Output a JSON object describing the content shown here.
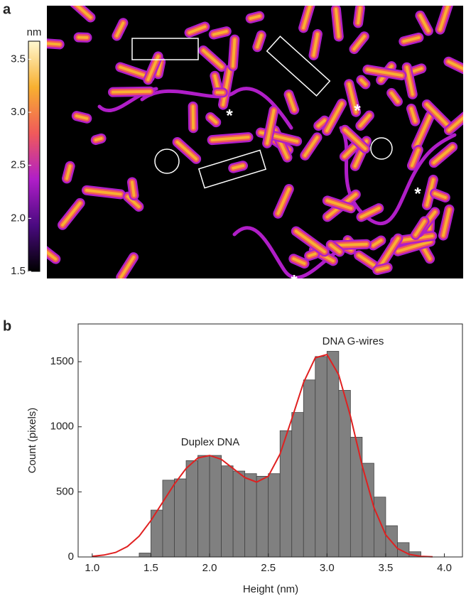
{
  "chart_data": [
    {
      "type": "image",
      "label": "a",
      "colorbar": {
        "label": "nm",
        "lim": [
          1.5,
          3.67
        ],
        "ticks": [
          1.5,
          {
            "value": 2,
            "label": "2.0"
          },
          2.5,
          {
            "value": 3,
            "label": "3.0"
          },
          3.5
        ],
        "colors": [
          "#000000",
          "#4a0a80",
          "#b01ec8",
          "#f05a5a",
          "#f8b030",
          "#fff8d0"
        ]
      },
      "annotations": [
        "*",
        "*",
        "*",
        "*"
      ]
    },
    {
      "type": "histogram",
      "label": "b",
      "xlabel": "Height (nm)",
      "ylabel": "Count (pixels)",
      "bins": [
        1.4,
        1.5,
        1.6,
        1.7,
        1.8,
        1.9,
        2.0,
        2.1,
        2.2,
        2.3,
        2.4,
        2.5,
        2.6,
        2.7,
        2.8,
        2.9,
        3.0,
        3.1,
        3.2,
        3.3,
        3.4,
        3.5,
        3.6,
        3.7,
        3.8
      ],
      "values": [
        30,
        360,
        590,
        600,
        740,
        780,
        780,
        700,
        660,
        640,
        620,
        640,
        970,
        1110,
        1360,
        1540,
        1580,
        1280,
        920,
        720,
        460,
        240,
        110,
        40
      ],
      "color": "#808080",
      "fit": {
        "color": "#e02020",
        "x": [
          1.0,
          1.1,
          1.2,
          1.3,
          1.4,
          1.5,
          1.6,
          1.7,
          1.8,
          1.9,
          2.0,
          2.1,
          2.2,
          2.3,
          2.4,
          2.5,
          2.6,
          2.7,
          2.8,
          2.9,
          3.0,
          3.1,
          3.2,
          3.3,
          3.4,
          3.5,
          3.6,
          3.7,
          3.8,
          3.9
        ],
        "values": [
          5,
          15,
          35,
          80,
          160,
          280,
          420,
          560,
          680,
          760,
          780,
          750,
          680,
          610,
          575,
          620,
          790,
          1060,
          1340,
          1530,
          1555,
          1400,
          1080,
          700,
          380,
          170,
          65,
          20,
          5,
          1
        ]
      },
      "annotations": [
        "Duplex DNA",
        "DNA G-wires"
      ],
      "xlim": [
        0.88,
        4.16
      ],
      "ylim": [
        0,
        1790
      ],
      "xticks": [
        {
          "value": 1,
          "label": "1.0"
        },
        1.5,
        {
          "value": 2,
          "label": "2.0"
        },
        2.5,
        {
          "value": 3,
          "label": "3.0"
        },
        3.5,
        {
          "value": 4,
          "label": "4.0"
        }
      ],
      "yticks": [
        0,
        500,
        1000,
        1500
      ]
    }
  ]
}
